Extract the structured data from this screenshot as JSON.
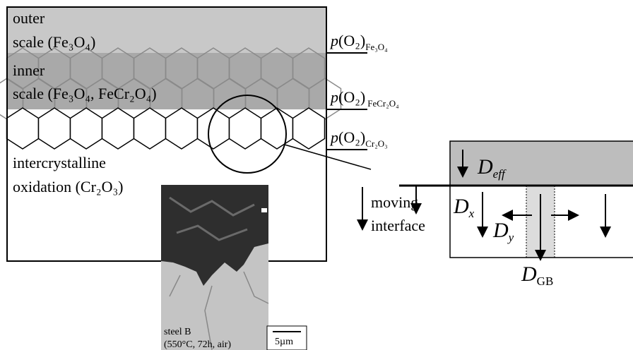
{
  "layers": {
    "outer": [
      "outer",
      "scale (Fe₃O₄)"
    ],
    "inner": [
      "inner",
      "scale (Fe₃O₄, FeCr₂O₄)"
    ],
    "intercrystalline": [
      "intercrystalline",
      "oxidation (Cr₂O₃)"
    ]
  },
  "pressures": [
    {
      "italic": "p",
      "main": "(O₂)",
      "sub": "Fe₃O₄"
    },
    {
      "italic": "p",
      "main": "(O₂)",
      "sub": "FeCr₂O₄"
    },
    {
      "italic": "p",
      "main": "(O₂)",
      "sub": "Cr₂O₃"
    }
  ],
  "moving_interface": [
    "moving",
    "interface"
  ],
  "micrograph": {
    "sample": "steel B",
    "conditions": "(550°C, 72h, air)",
    "scale": "5µm"
  },
  "diffusion": {
    "eff": {
      "symbol": "D",
      "sub": "eff"
    },
    "x": {
      "symbol": "D",
      "sub": "x"
    },
    "y": {
      "symbol": "D",
      "sub": "y"
    },
    "gb": {
      "symbol": "D",
      "sub": "GB"
    }
  }
}
